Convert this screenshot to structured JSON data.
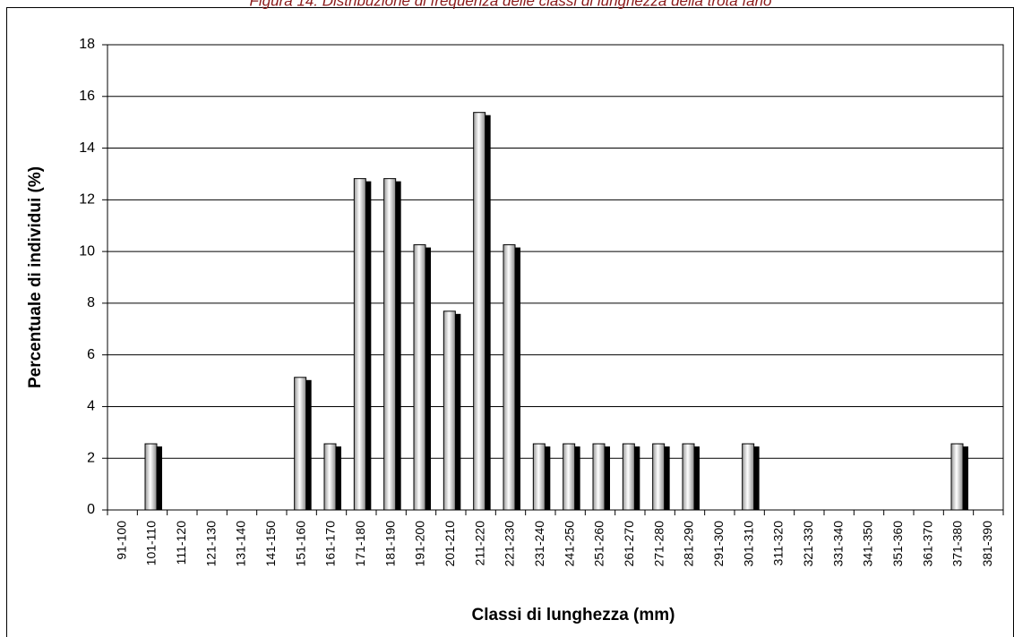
{
  "chart_data": {
    "type": "bar",
    "title": "Figura 14. Distribuzione di frequenza delle classi di lunghezza della trota fario",
    "x_label": "Classi di lunghezza (mm)",
    "y_label": "Percentuale di individui (%)",
    "categories": [
      "91-100",
      "101-110",
      "111-120",
      "121-130",
      "131-140",
      "141-150",
      "151-160",
      "161-170",
      "171-180",
      "181-190",
      "191-200",
      "201-210",
      "211-220",
      "221-230",
      "231-240",
      "241-250",
      "251-260",
      "261-270",
      "271-280",
      "281-290",
      "291-300",
      "301-310",
      "311-320",
      "321-330",
      "331-340",
      "341-350",
      "351-360",
      "361-370",
      "371-380",
      "381-390"
    ],
    "values": [
      0,
      2.56,
      0,
      0,
      0,
      0,
      5.13,
      2.56,
      12.82,
      12.82,
      10.26,
      7.69,
      15.38,
      10.26,
      2.56,
      2.56,
      2.56,
      2.56,
      2.56,
      2.56,
      0,
      2.56,
      0,
      0,
      0,
      0,
      0,
      0,
      2.56,
      0
    ],
    "color": "#e0e0e0",
    "ylim": [
      0,
      18
    ],
    "yticks": [
      0,
      2,
      4,
      6,
      8,
      10,
      12,
      14,
      16,
      18
    ],
    "grid": true
  }
}
